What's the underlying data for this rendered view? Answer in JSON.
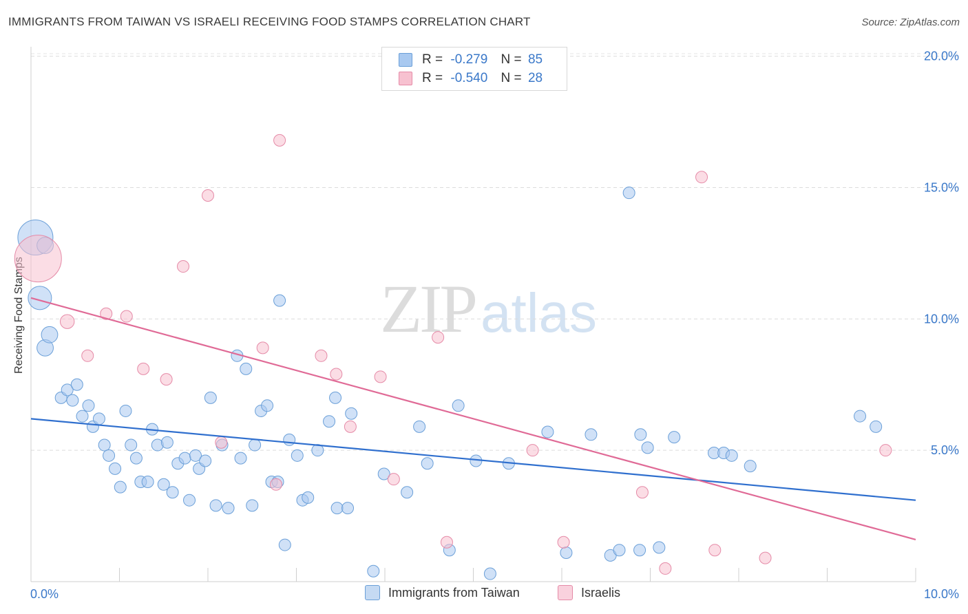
{
  "title": "IMMIGRANTS FROM TAIWAN VS ISRAELI RECEIVING FOOD STAMPS CORRELATION CHART",
  "source": "Source: ZipAtlas.com",
  "watermark": {
    "zip": "ZIP",
    "atlas": "atlas"
  },
  "legend_top": [
    {
      "r_label": "R =",
      "r_value": "-0.279",
      "n_label": "N =",
      "n_value": "85",
      "color": "#a9c9f0",
      "border": "#6a9fd8"
    },
    {
      "r_label": "R =",
      "r_value": "-0.540",
      "n_label": "N =",
      "n_value": "28",
      "color": "#f7c1d0",
      "border": "#e58aa7"
    }
  ],
  "legend_bottom": [
    {
      "label": "Immigrants from Taiwan",
      "color": "#c5daf3",
      "border": "#6a9fd8"
    },
    {
      "label": "Israelis",
      "color": "#f9d1dd",
      "border": "#e58aa7"
    }
  ],
  "chart_data": {
    "type": "scatter",
    "title": "IMMIGRANTS FROM TAIWAN VS ISRAELI RECEIVING FOOD STAMPS CORRELATION CHART",
    "xlabel": "",
    "ylabel": "Receiving Food Stamps",
    "xlim": [
      0,
      10
    ],
    "ylim": [
      0,
      20.5
    ],
    "x_tick_labels": [
      "0.0%",
      "10.0%"
    ],
    "y_ticks": [
      5,
      10,
      15,
      20
    ],
    "y_tick_labels": [
      "5.0%",
      "10.0%",
      "15.0%",
      "20.0%"
    ],
    "grid": true,
    "legend_position": "top-center",
    "series": [
      {
        "name": "Immigrants from Taiwan",
        "color": "#a9c9f0",
        "stroke": "#6a9fd8",
        "trend": {
          "x": [
            0,
            10
          ],
          "y": [
            6.2,
            3.1
          ],
          "color": "#2f6fce"
        },
        "points": [
          [
            0.05,
            13.1,
            3
          ],
          [
            0.1,
            10.8,
            2
          ],
          [
            0.16,
            12.8,
            1.4
          ],
          [
            0.16,
            8.9,
            1.4
          ],
          [
            0.21,
            9.4,
            1.4
          ],
          [
            0.34,
            7.0,
            1
          ],
          [
            0.41,
            7.3,
            1
          ],
          [
            0.47,
            6.9,
            1
          ],
          [
            0.52,
            7.5,
            1
          ],
          [
            0.58,
            6.3,
            1
          ],
          [
            0.65,
            6.7,
            1
          ],
          [
            0.7,
            5.9,
            1
          ],
          [
            0.77,
            6.2,
            1
          ],
          [
            0.83,
            5.2,
            1
          ],
          [
            0.88,
            4.8,
            1
          ],
          [
            0.95,
            4.3,
            1
          ],
          [
            1.01,
            3.6,
            1
          ],
          [
            1.07,
            6.5,
            1
          ],
          [
            1.13,
            5.2,
            1
          ],
          [
            1.19,
            4.7,
            1
          ],
          [
            1.24,
            3.8,
            1
          ],
          [
            1.32,
            3.8,
            1
          ],
          [
            1.37,
            5.8,
            1
          ],
          [
            1.43,
            5.2,
            1
          ],
          [
            1.5,
            3.7,
            1
          ],
          [
            1.54,
            5.3,
            1
          ],
          [
            1.6,
            3.4,
            1
          ],
          [
            1.66,
            4.5,
            1
          ],
          [
            1.74,
            4.7,
            1
          ],
          [
            1.79,
            3.1,
            1
          ],
          [
            1.86,
            4.8,
            1
          ],
          [
            1.9,
            4.3,
            1
          ],
          [
            1.97,
            4.6,
            1
          ],
          [
            2.03,
            7.0,
            1
          ],
          [
            2.09,
            2.9,
            1
          ],
          [
            2.16,
            5.2,
            1
          ],
          [
            2.23,
            2.8,
            1
          ],
          [
            2.33,
            8.6,
            1
          ],
          [
            2.37,
            4.7,
            1
          ],
          [
            2.43,
            8.1,
            1
          ],
          [
            2.5,
            2.9,
            1
          ],
          [
            2.53,
            5.2,
            1
          ],
          [
            2.6,
            6.5,
            1
          ],
          [
            2.67,
            6.7,
            1
          ],
          [
            2.72,
            3.8,
            1
          ],
          [
            2.79,
            3.8,
            1
          ],
          [
            2.81,
            10.7,
            1
          ],
          [
            2.87,
            1.4,
            1
          ],
          [
            2.92,
            5.4,
            1
          ],
          [
            3.01,
            4.8,
            1
          ],
          [
            3.07,
            3.1,
            1
          ],
          [
            3.13,
            3.2,
            1
          ],
          [
            3.24,
            5.0,
            1
          ],
          [
            3.37,
            6.1,
            1
          ],
          [
            3.44,
            7.0,
            1
          ],
          [
            3.46,
            2.8,
            1
          ],
          [
            3.58,
            2.8,
            1
          ],
          [
            3.62,
            6.4,
            1
          ],
          [
            3.87,
            0.4,
            1
          ],
          [
            3.99,
            4.1,
            1
          ],
          [
            4.25,
            3.4,
            1
          ],
          [
            4.39,
            5.9,
            1
          ],
          [
            4.48,
            4.5,
            1
          ],
          [
            4.73,
            1.2,
            1
          ],
          [
            4.83,
            6.7,
            1
          ],
          [
            5.03,
            4.6,
            1
          ],
          [
            5.19,
            0.3,
            1
          ],
          [
            5.4,
            4.5,
            1
          ],
          [
            5.84,
            5.7,
            1
          ],
          [
            6.05,
            1.1,
            1
          ],
          [
            6.33,
            5.6,
            1
          ],
          [
            6.55,
            1.0,
            1
          ],
          [
            6.65,
            1.2,
            1
          ],
          [
            6.76,
            14.8,
            1
          ],
          [
            6.88,
            1.2,
            1
          ],
          [
            6.89,
            5.6,
            1
          ],
          [
            6.97,
            5.1,
            1
          ],
          [
            7.1,
            1.3,
            1
          ],
          [
            7.27,
            5.5,
            1
          ],
          [
            7.72,
            4.9,
            1
          ],
          [
            7.83,
            4.9,
            1
          ],
          [
            7.92,
            4.8,
            1
          ],
          [
            8.13,
            4.4,
            1
          ],
          [
            9.37,
            6.3,
            1
          ],
          [
            9.55,
            5.9,
            1
          ]
        ]
      },
      {
        "name": "Israelis",
        "color": "#f7c1d0",
        "stroke": "#e58aa7",
        "trend": {
          "x": [
            0,
            10
          ],
          "y": [
            10.8,
            1.6
          ],
          "color": "#e06a96"
        },
        "points": [
          [
            0.08,
            12.3,
            4
          ],
          [
            0.41,
            9.9,
            1.2
          ],
          [
            0.64,
            8.6,
            1
          ],
          [
            0.85,
            10.2,
            1
          ],
          [
            1.08,
            10.1,
            1
          ],
          [
            1.27,
            8.1,
            1
          ],
          [
            1.53,
            7.7,
            1
          ],
          [
            1.72,
            12.0,
            1
          ],
          [
            2.0,
            14.7,
            1
          ],
          [
            2.15,
            5.3,
            1
          ],
          [
            2.62,
            8.9,
            1
          ],
          [
            2.81,
            16.8,
            1
          ],
          [
            2.77,
            3.7,
            1
          ],
          [
            3.28,
            8.6,
            1
          ],
          [
            3.45,
            7.9,
            1
          ],
          [
            3.61,
            5.9,
            1
          ],
          [
            3.95,
            7.8,
            1
          ],
          [
            4.1,
            3.9,
            1
          ],
          [
            4.6,
            9.3,
            1
          ],
          [
            4.7,
            1.5,
            1
          ],
          [
            5.67,
            5.0,
            1
          ],
          [
            6.02,
            1.5,
            1
          ],
          [
            6.91,
            3.4,
            1
          ],
          [
            7.17,
            0.5,
            1
          ],
          [
            7.58,
            15.4,
            1
          ],
          [
            7.73,
            1.2,
            1
          ],
          [
            8.3,
            0.9,
            1
          ],
          [
            9.66,
            5.0,
            1
          ]
        ]
      }
    ]
  }
}
